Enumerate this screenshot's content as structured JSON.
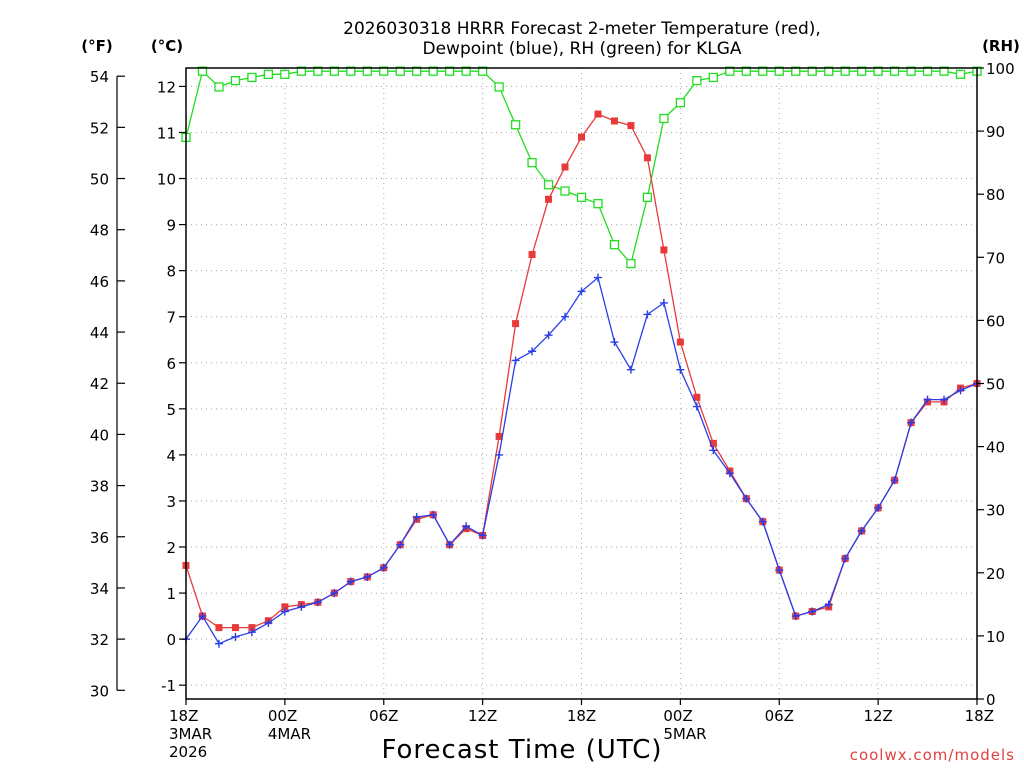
{
  "chart_data": {
    "type": "line",
    "title_lines": [
      "2026030318 HRRR Forecast 2-meter Temperature (red),",
      "Dewpoint (blue), RH (green) for KLGA"
    ],
    "xlabel": "Forecast Time (UTC)",
    "credit": "coolwx.com/models",
    "units": {
      "left_outer": "(°F)",
      "left_inner": "(°C)",
      "right": "(RH)"
    },
    "x_range_hours": [
      0,
      48
    ],
    "x_ticks": [
      {
        "hour": 0,
        "lines": [
          "18Z",
          "3MAR",
          "2026"
        ]
      },
      {
        "hour": 6,
        "lines": [
          "00Z",
          "4MAR"
        ]
      },
      {
        "hour": 12,
        "lines": [
          "06Z"
        ]
      },
      {
        "hour": 18,
        "lines": [
          "12Z"
        ]
      },
      {
        "hour": 24,
        "lines": [
          "18Z"
        ]
      },
      {
        "hour": 30,
        "lines": [
          "00Z",
          "5MAR"
        ]
      },
      {
        "hour": 36,
        "lines": [
          "06Z"
        ]
      },
      {
        "hour": 42,
        "lines": [
          "12Z"
        ]
      },
      {
        "hour": 48,
        "lines": [
          "18Z"
        ]
      }
    ],
    "y_celsius": {
      "range": [
        -1.3,
        12.4
      ],
      "ticks": [
        -1,
        0,
        1,
        2,
        3,
        4,
        5,
        6,
        7,
        8,
        9,
        10,
        11,
        12
      ]
    },
    "y_fahrenheit": {
      "ticks": [
        30,
        32,
        34,
        36,
        38,
        40,
        42,
        44,
        46,
        48,
        50,
        52,
        54
      ]
    },
    "y_rh": {
      "range": [
        0,
        100
      ],
      "ticks": [
        0,
        10,
        20,
        30,
        40,
        50,
        60,
        70,
        80,
        90,
        100
      ]
    },
    "grid": true,
    "series": [
      {
        "name": "Temperature",
        "unit": "C",
        "color": "#e83a3a",
        "marker": "filled-square",
        "values": [
          1.6,
          0.5,
          0.25,
          0.25,
          0.25,
          0.4,
          0.7,
          0.75,
          0.8,
          1.0,
          1.25,
          1.35,
          1.55,
          2.05,
          2.6,
          2.7,
          2.05,
          2.4,
          2.25,
          4.4,
          6.85,
          8.35,
          9.55,
          10.25,
          10.9,
          11.4,
          11.25,
          11.15,
          10.45,
          8.45,
          6.45,
          5.25,
          4.25,
          3.65,
          3.05,
          2.55,
          1.5,
          0.5,
          0.6,
          0.7,
          1.75,
          2.35,
          2.85,
          3.45,
          4.7,
          5.15,
          5.15,
          5.45,
          5.55
        ]
      },
      {
        "name": "Dewpoint",
        "unit": "C",
        "color": "#2a3ee8",
        "marker": "plus",
        "values": [
          0.0,
          0.5,
          -0.1,
          0.05,
          0.15,
          0.35,
          0.6,
          0.7,
          0.8,
          1.0,
          1.25,
          1.35,
          1.55,
          2.05,
          2.65,
          2.7,
          2.05,
          2.45,
          2.25,
          4.0,
          6.05,
          6.25,
          6.6,
          7.0,
          7.55,
          7.85,
          6.45,
          5.85,
          7.05,
          7.3,
          5.85,
          5.05,
          4.1,
          3.6,
          3.05,
          2.55,
          1.5,
          0.5,
          0.6,
          0.75,
          1.75,
          2.35,
          2.85,
          3.45,
          4.7,
          5.2,
          5.2,
          5.4,
          5.55
        ]
      },
      {
        "name": "RH",
        "unit": "%",
        "color": "#22dd22",
        "marker": "open-square",
        "values": [
          89,
          99.5,
          97,
          98,
          98.5,
          99,
          99,
          99.5,
          99.5,
          99.5,
          99.5,
          99.5,
          99.5,
          99.5,
          99.5,
          99.5,
          99.5,
          99.5,
          99.5,
          97,
          91,
          85,
          81.5,
          80.5,
          79.5,
          78.5,
          72,
          69,
          79.5,
          92,
          94.5,
          98,
          98.5,
          99.5,
          99.5,
          99.5,
          99.5,
          99.5,
          99.5,
          99.5,
          99.5,
          99.5,
          99.5,
          99.5,
          99.5,
          99.5,
          99.5,
          99,
          99.5
        ]
      }
    ]
  }
}
